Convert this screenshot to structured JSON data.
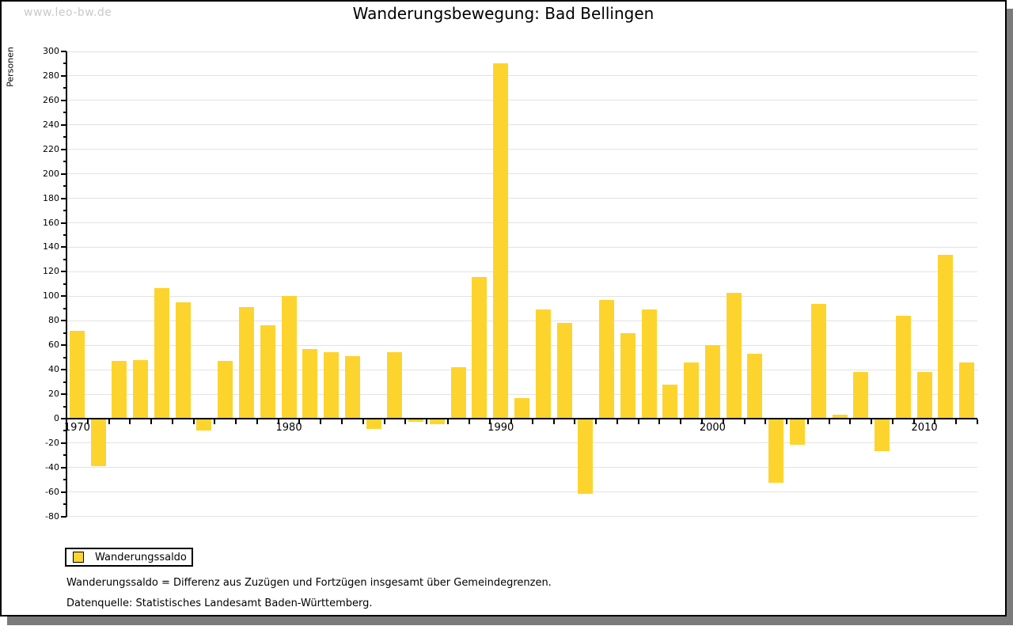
{
  "watermark": "www.leo-bw.de",
  "title": "Wanderungsbewegung: Bad Bellingen",
  "legend": {
    "label": "Wanderungssaldo",
    "swatch_color": "#FDD42E"
  },
  "footnotes": {
    "definition": "Wanderungssaldo = Differenz aus Zuzügen und Fortzügen insgesamt über Gemeindegrenzen.",
    "source": "Datenquelle: Statistisches Landesamt Baden-Württemberg."
  },
  "chart_data": {
    "type": "bar",
    "title": "Wanderungsbewegung: Bad Bellingen",
    "xlabel": "",
    "ylabel": "Personen",
    "series_name": "Wanderungssaldo",
    "bar_color": "#FDD42E",
    "grid": true,
    "legend_position": "bottom-left",
    "ylim": [
      -80,
      300
    ],
    "ytick_values": [
      -80,
      -60,
      -40,
      -20,
      0,
      20,
      40,
      60,
      80,
      100,
      120,
      140,
      160,
      180,
      200,
      220,
      240,
      260,
      280,
      300
    ],
    "xticks": [
      {
        "year": 1970,
        "label": "1970"
      },
      {
        "year": 1980,
        "label": "1980"
      },
      {
        "year": 1990,
        "label": "1990"
      },
      {
        "year": 2000,
        "label": "2000"
      },
      {
        "year": 2010,
        "label": "2010"
      }
    ],
    "years": [
      1970,
      1971,
      1972,
      1973,
      1974,
      1975,
      1976,
      1977,
      1978,
      1979,
      1980,
      1981,
      1982,
      1983,
      1984,
      1985,
      1986,
      1987,
      1988,
      1989,
      1990,
      1991,
      1992,
      1993,
      1994,
      1995,
      1996,
      1997,
      1998,
      1999,
      2000,
      2001,
      2002,
      2003,
      2004,
      2005,
      2006,
      2007,
      2008,
      2009,
      2010,
      2011,
      2012
    ],
    "values": [
      72,
      -38,
      47,
      48,
      107,
      95,
      -9,
      47,
      91,
      76,
      100,
      57,
      54,
      51,
      -8,
      54,
      -2,
      -4,
      42,
      116,
      290,
      17,
      89,
      78,
      -61,
      97,
      70,
      89,
      28,
      46,
      60,
      103,
      53,
      -52,
      -21,
      94,
      3,
      38,
      -26,
      84,
      38,
      134,
      46
    ]
  }
}
